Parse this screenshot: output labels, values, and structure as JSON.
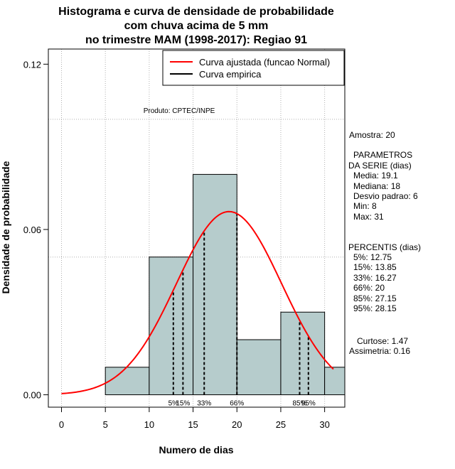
{
  "chart_data": {
    "type": "bar",
    "title_lines": [
      "Histograma e curva de densidade de probabilidade",
      "com chuva acima de 5 mm",
      "no trimestre MAM (1998-2017): Regiao 91"
    ],
    "xlabel": "Numero de dias",
    "ylabel": "Densidade de probabilidade",
    "xlim": [
      -1.5,
      32.3
    ],
    "ylim": [
      -0.0045,
      0.1255
    ],
    "x_ticks": [
      "0",
      "5",
      "10",
      "15",
      "20",
      "25",
      "30"
    ],
    "x_tick_values": [
      0,
      5,
      10,
      15,
      20,
      25,
      30
    ],
    "y_ticks": [
      "0.00",
      "0.06",
      "0.12"
    ],
    "y_tick_values": [
      0.0,
      0.06,
      0.12
    ],
    "hgrid_values": [
      0.1,
      0.05
    ],
    "bins": [
      {
        "start": 5,
        "end": 10,
        "density": 0.01
      },
      {
        "start": 10,
        "end": 15,
        "density": 0.05
      },
      {
        "start": 15,
        "end": 20,
        "density": 0.08
      },
      {
        "start": 20,
        "end": 25,
        "density": 0.02
      },
      {
        "start": 25,
        "end": 30,
        "density": 0.03
      },
      {
        "start": 30,
        "end": 35,
        "density": 0.01
      }
    ],
    "bar_color": "#b6cccc",
    "curve_color": "#ff0000",
    "fitted_curve": {
      "distribution": "Normal",
      "mean": 19.1,
      "sd": 6,
      "x_range": [
        0,
        31
      ]
    },
    "percentile_lines": [
      {
        "label": "5%",
        "value": 12.75
      },
      {
        "label": "15%",
        "value": 13.85
      },
      {
        "label": "33%",
        "value": 16.27
      },
      {
        "label": "66%",
        "value": 20
      },
      {
        "label": "85%",
        "value": 27.15
      },
      {
        "label": "95%",
        "value": 28.15
      }
    ],
    "legend": {
      "position": "top-right",
      "entries": [
        {
          "label": "Curva ajustada (funcao Normal)",
          "color": "#ff0000"
        },
        {
          "label": "Curva empirica",
          "color": "#000000"
        }
      ]
    },
    "credit": "Produto: CPTEC/INPE",
    "side_text": [
      "Amostra: 20",
      "PARAMETROS",
      "DA SERIE (dias)",
      "Media: 19.1",
      "Mediana: 18",
      "Desvio padrao: 6",
      "Min: 8",
      "Max: 31",
      "PERCENTIS (dias)",
      "5%: 12.75",
      "15%: 13.85",
      "33%: 16.27",
      "66%: 20",
      "85%: 27.15",
      "95%: 28.15",
      "Curtose: 1.47",
      "Assimetria: 0.16"
    ]
  }
}
